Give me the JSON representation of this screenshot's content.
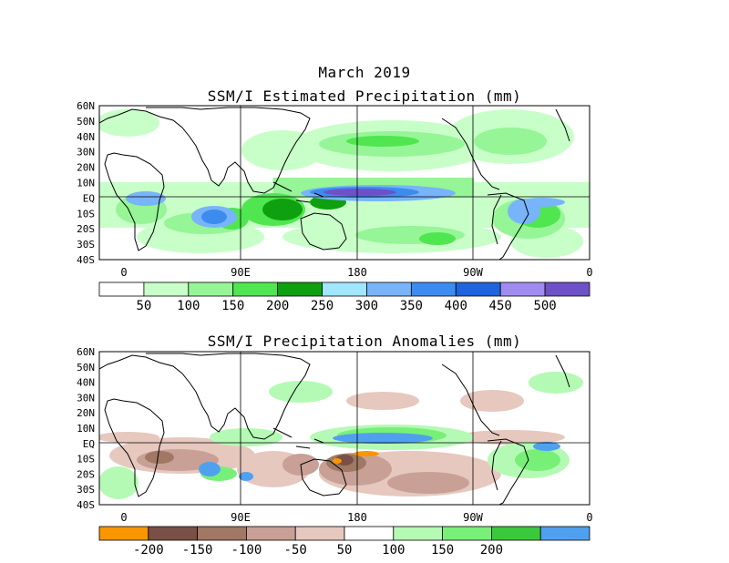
{
  "header": {
    "date": "March 2019"
  },
  "maps": [
    {
      "title": "SSM/I Estimated Precipitation (mm)",
      "lat_labels": [
        "60N",
        "50N",
        "40N",
        "30N",
        "20N",
        "10N",
        "EQ",
        "10S",
        "20S",
        "30S",
        "40S"
      ],
      "lon_labels": [
        "0",
        "90E",
        "180",
        "90W",
        "0"
      ],
      "colorbar": {
        "colors": [
          "#ffffff",
          "#c8ffc8",
          "#96f596",
          "#50e650",
          "#0fa00f",
          "#a0e6ff",
          "#78b4fa",
          "#3c8cf0",
          "#1e64dc",
          "#a08cf0",
          "#6e50c8"
        ],
        "labels": [
          "50",
          "100",
          "150",
          "200",
          "250",
          "300",
          "350",
          "400",
          "450",
          "500"
        ]
      }
    },
    {
      "title": "SSM/I Precipitation Anomalies (mm)",
      "lat_labels": [
        "60N",
        "50N",
        "40N",
        "30N",
        "20N",
        "10N",
        "EQ",
        "10S",
        "20S",
        "30S",
        "40S"
      ],
      "lon_labels": [
        "0",
        "90E",
        "180",
        "90W",
        "0"
      ],
      "colorbar": {
        "colors": [
          "#fa9600",
          "#7a5046",
          "#a07864",
          "#c8a096",
          "#e6c8be",
          "#ffffff",
          "#b4fab4",
          "#78f078",
          "#3cc83c",
          "#50a0f0"
        ],
        "labels": [
          "-200",
          "-150",
          "-100",
          "-50",
          "50",
          "100",
          "150",
          "200"
        ]
      }
    }
  ]
}
